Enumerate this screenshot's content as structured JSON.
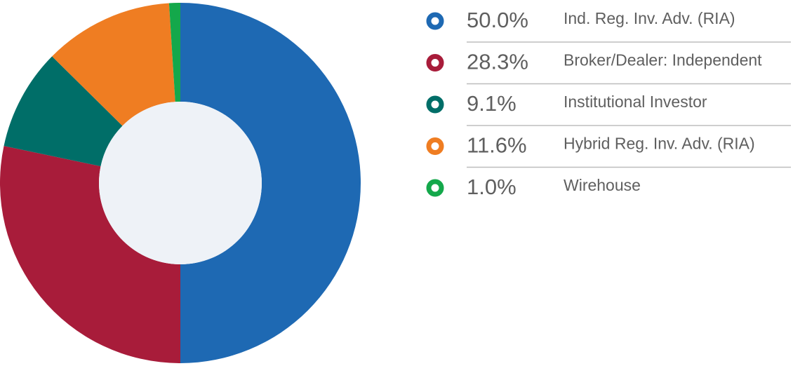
{
  "chart_data": {
    "type": "donut",
    "categories": [
      "Ind. Reg. Inv. Adv. (RIA)",
      "Broker/Dealer: Independent",
      "Institutional Investor",
      "Hybrid Reg. Inv. Adv. (RIA)",
      "Wirehouse"
    ],
    "values": [
      50.0,
      28.3,
      9.1,
      11.6,
      1.0
    ],
    "value_labels": [
      "50.0%",
      "28.3%",
      "9.1%",
      "11.6%",
      "1.0%"
    ],
    "colors": [
      "#1e69b3",
      "#a81c3a",
      "#006e68",
      "#ef7d22",
      "#14a84b"
    ]
  }
}
